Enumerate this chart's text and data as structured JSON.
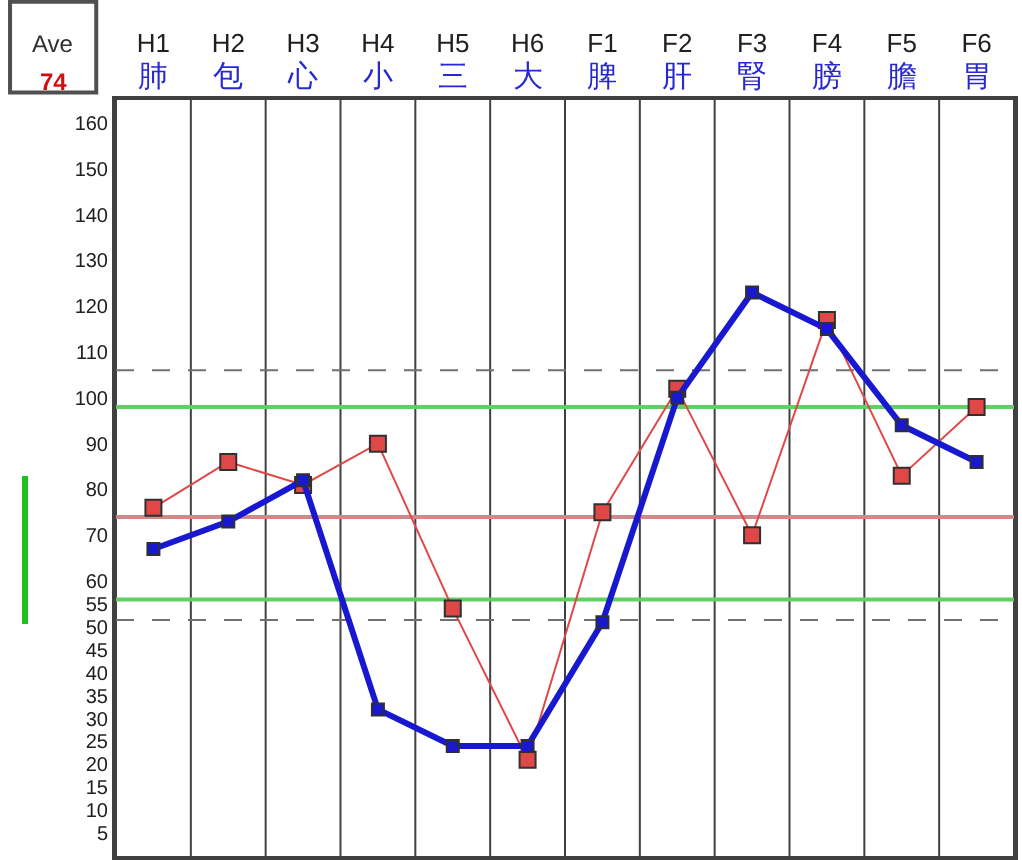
{
  "chart_data": {
    "type": "line",
    "categories": [
      "H1\n肺",
      "H2\n包",
      "H3\n心",
      "H4\n小",
      "H5\n三",
      "H6\n大",
      "F1\n脾",
      "F2\n肝",
      "F3\n腎",
      "F4\n膀",
      "F5\n膽",
      "F6\n胃"
    ],
    "series": [
      {
        "color": "#e04848",
        "values": [
          76,
          86,
          81,
          90,
          54,
          21,
          75,
          102,
          70,
          117,
          83,
          98
        ]
      },
      {
        "color": "#1818d0",
        "values": [
          67,
          73,
          82,
          32,
          24,
          24,
          51,
          100,
          123,
          115,
          94,
          86
        ]
      }
    ],
    "ylim": [
      0,
      165
    ],
    "yticks": [
      160,
      150,
      140,
      130,
      120,
      110,
      100,
      90,
      80,
      70,
      60,
      55,
      50,
      45,
      40,
      35,
      30,
      25,
      20,
      15,
      10,
      5
    ],
    "annotations": [
      "Ave",
      "74"
    ],
    "ref_lines": [
      {
        "axis": "y",
        "value": 74,
        "color": "#d08888"
      },
      {
        "axis": "y",
        "value": 98,
        "color": "#60d060"
      },
      {
        "axis": "y",
        "value": 56,
        "color": "#60d060"
      },
      {
        "axis": "y",
        "value": 106,
        "color": "#707070",
        "line_style": "dashed"
      },
      {
        "axis": "y",
        "value": 51.5,
        "color": "#707070",
        "line_style": "dashed"
      }
    ],
    "grid": "x",
    "marker": "square"
  }
}
